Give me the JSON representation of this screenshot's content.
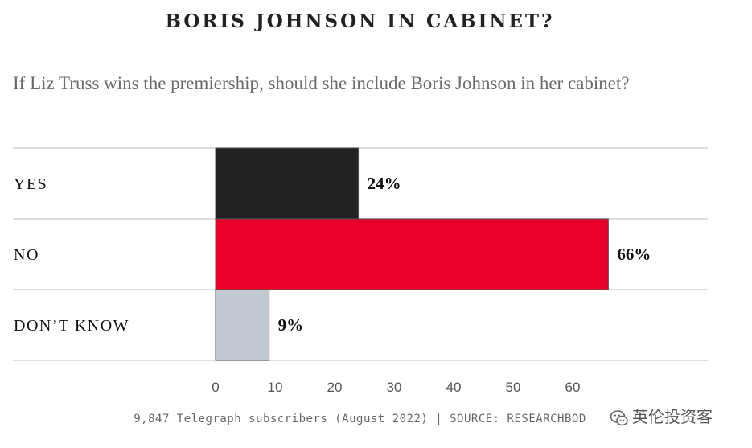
{
  "header": {
    "title": "BORIS JOHNSON IN CABINET?",
    "question": "If Liz Truss wins the premiership, should she include Boris Johnson in her cabinet?"
  },
  "chart_data": {
    "type": "bar",
    "orientation": "horizontal",
    "title": "BORIS JOHNSON IN CABINET?",
    "subtitle": "If Liz Truss wins the premiership, should she include Boris Johnson in her cabinet?",
    "categories": [
      "YES",
      "NO",
      "DON’T KNOW"
    ],
    "values": [
      24,
      66,
      9
    ],
    "value_labels": [
      "24%",
      "66%",
      "9%"
    ],
    "bar_colors": [
      "#222222",
      "#e8002a",
      "#c2c8d0"
    ],
    "xlim": [
      0,
      70
    ],
    "xticks": [
      0,
      10,
      20,
      30,
      40,
      50,
      60
    ],
    "grid": true,
    "xlabel": "",
    "ylabel": ""
  },
  "footer": {
    "source": "9,847 Telegraph subscribers (August 2022) | SOURCE: RESEARCHBOD"
  },
  "watermark": {
    "text": "英伦投资客",
    "icon": "wechat-icon"
  }
}
